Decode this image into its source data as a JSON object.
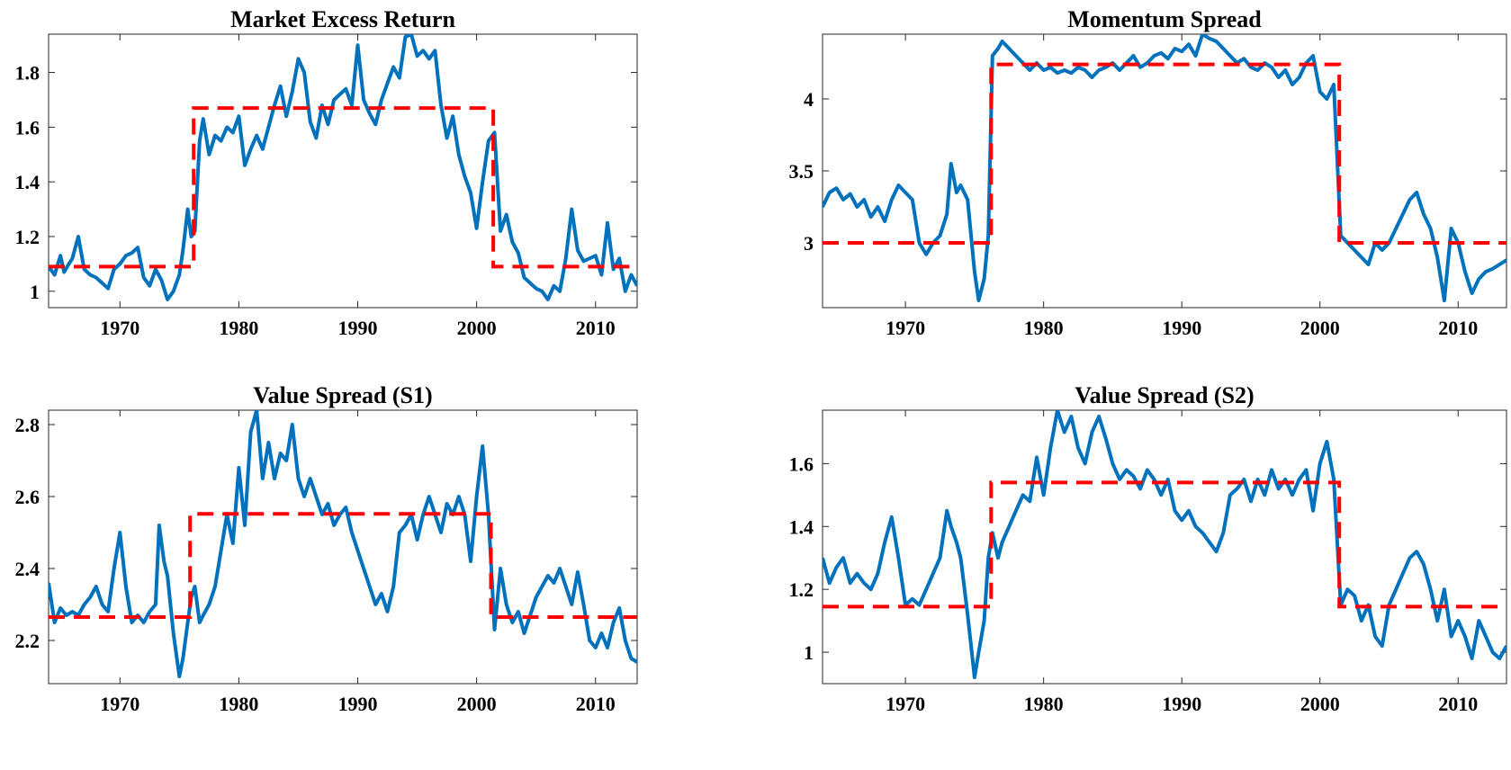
{
  "colors": {
    "series": "#0072BD",
    "regime": "#FF0000",
    "axes": "#262626",
    "background": "#FFFFFF"
  },
  "chart_data": [
    {
      "type": "line",
      "title": "Market Excess Return",
      "xlim": [
        1964,
        2013.5
      ],
      "ylim": [
        0.94,
        1.94
      ],
      "xticks": [
        1970,
        1980,
        1990,
        2000,
        2010
      ],
      "yticks": [
        1,
        1.2,
        1.4,
        1.6,
        1.8
      ],
      "ytick_labels": [
        "1",
        "1.2",
        "1.4",
        "1.6",
        "1.8"
      ],
      "grid": false,
      "series": [
        {
          "x": [
            1964.0,
            1964.5,
            1965.0,
            1965.3,
            1965.7,
            1966.0,
            1966.5,
            1967.0,
            1967.5,
            1968.0,
            1968.5,
            1969.0,
            1969.5,
            1970.0,
            1970.5,
            1971.0,
            1971.5,
            1972.0,
            1972.5,
            1973.0,
            1973.5,
            1974.0,
            1974.5,
            1975.0,
            1975.3,
            1975.7,
            1976.0,
            1976.3,
            1976.7,
            1977.0,
            1977.5,
            1978.0,
            1978.5,
            1979.0,
            1979.5,
            1980.0,
            1980.5,
            1981.0,
            1981.5,
            1982.0,
            1982.5,
            1983.0,
            1983.5,
            1984.0,
            1984.5,
            1985.0,
            1985.5,
            1986.0,
            1986.5,
            1987.0,
            1987.5,
            1988.0,
            1988.5,
            1989.0,
            1989.5,
            1990.0,
            1990.5,
            1991.0,
            1991.5,
            1992.0,
            1992.5,
            1993.0,
            1993.5,
            1994.0,
            1994.5,
            1995.0,
            1995.5,
            1996.0,
            1996.5,
            1997.0,
            1997.5,
            1998.0,
            1998.5,
            1999.0,
            1999.5,
            2000.0,
            2000.5,
            2001.0,
            2001.5,
            2002.0,
            2002.5,
            2003.0,
            2003.5,
            2004.0,
            2004.5,
            2005.0,
            2005.5,
            2006.0,
            2006.5,
            2007.0,
            2007.5,
            2008.0,
            2008.5,
            2009.0,
            2009.5,
            2010.0,
            2010.5,
            2011.0,
            2011.5,
            2012.0,
            2012.5,
            2013.0,
            2013.5
          ],
          "y": [
            1.09,
            1.06,
            1.13,
            1.07,
            1.1,
            1.12,
            1.2,
            1.08,
            1.06,
            1.05,
            1.03,
            1.01,
            1.08,
            1.1,
            1.13,
            1.14,
            1.16,
            1.05,
            1.02,
            1.08,
            1.04,
            0.97,
            1.0,
            1.06,
            1.15,
            1.3,
            1.2,
            1.22,
            1.55,
            1.63,
            1.5,
            1.57,
            1.55,
            1.6,
            1.58,
            1.64,
            1.46,
            1.52,
            1.57,
            1.52,
            1.6,
            1.68,
            1.75,
            1.64,
            1.73,
            1.85,
            1.8,
            1.62,
            1.56,
            1.68,
            1.61,
            1.7,
            1.72,
            1.74,
            1.68,
            1.9,
            1.7,
            1.65,
            1.61,
            1.7,
            1.76,
            1.82,
            1.78,
            1.93,
            1.94,
            1.86,
            1.88,
            1.85,
            1.88,
            1.68,
            1.56,
            1.64,
            1.5,
            1.42,
            1.36,
            1.23,
            1.4,
            1.55,
            1.58,
            1.22,
            1.28,
            1.18,
            1.14,
            1.05,
            1.03,
            1.01,
            1.0,
            0.97,
            1.02,
            1.0,
            1.12,
            1.3,
            1.15,
            1.11,
            1.12,
            1.13,
            1.06,
            1.25,
            1.08,
            1.12,
            1.0,
            1.06,
            1.02
          ]
        }
      ],
      "regimes": {
        "x": [
          1964,
          1976.2,
          1976.2,
          2001.4,
          2001.4,
          2013.5
        ],
        "y": [
          1.09,
          1.09,
          1.67,
          1.67,
          1.09,
          1.09
        ]
      }
    },
    {
      "type": "line",
      "title": "Momentum Spread",
      "xlim": [
        1964,
        2013.5
      ],
      "ylim": [
        2.55,
        4.45
      ],
      "xticks": [
        1970,
        1980,
        1990,
        2000,
        2010
      ],
      "yticks": [
        3,
        3.5,
        4
      ],
      "ytick_labels": [
        "3",
        "3.5",
        "4"
      ],
      "grid": false,
      "series": [
        {
          "x": [
            1964.0,
            1964.5,
            1965.0,
            1965.5,
            1966.0,
            1966.5,
            1967.0,
            1967.5,
            1968.0,
            1968.5,
            1969.0,
            1969.5,
            1970.0,
            1970.5,
            1971.0,
            1971.5,
            1972.0,
            1972.5,
            1973.0,
            1973.3,
            1973.7,
            1974.0,
            1974.5,
            1975.0,
            1975.3,
            1975.7,
            1976.0,
            1976.3,
            1976.7,
            1977.0,
            1977.5,
            1978.0,
            1978.5,
            1979.0,
            1979.5,
            1980.0,
            1980.5,
            1981.0,
            1981.5,
            1982.0,
            1982.5,
            1983.0,
            1983.5,
            1984.0,
            1984.5,
            1985.0,
            1985.5,
            1986.0,
            1986.5,
            1987.0,
            1987.5,
            1988.0,
            1988.5,
            1989.0,
            1989.5,
            1990.0,
            1990.5,
            1991.0,
            1991.5,
            1992.0,
            1992.5,
            1993.0,
            1993.5,
            1994.0,
            1994.5,
            1995.0,
            1995.5,
            1996.0,
            1996.5,
            1997.0,
            1997.5,
            1998.0,
            1998.5,
            1999.0,
            1999.5,
            2000.0,
            2000.5,
            2001.0,
            2001.5,
            2002.0,
            2002.5,
            2003.0,
            2003.5,
            2004.0,
            2004.5,
            2005.0,
            2005.5,
            2006.0,
            2006.5,
            2007.0,
            2007.5,
            2008.0,
            2008.5,
            2009.0,
            2009.5,
            2010.0,
            2010.5,
            2011.0,
            2011.5,
            2012.0,
            2012.5,
            2013.0,
            2013.5
          ],
          "y": [
            3.25,
            3.35,
            3.38,
            3.3,
            3.34,
            3.25,
            3.3,
            3.18,
            3.25,
            3.15,
            3.3,
            3.4,
            3.35,
            3.3,
            3.0,
            2.92,
            3.0,
            3.05,
            3.2,
            3.55,
            3.35,
            3.4,
            3.3,
            2.8,
            2.6,
            2.75,
            3.05,
            4.3,
            4.35,
            4.4,
            4.35,
            4.3,
            4.25,
            4.2,
            4.25,
            4.2,
            4.22,
            4.18,
            4.2,
            4.18,
            4.22,
            4.2,
            4.15,
            4.2,
            4.22,
            4.25,
            4.2,
            4.25,
            4.3,
            4.22,
            4.25,
            4.3,
            4.32,
            4.28,
            4.35,
            4.33,
            4.38,
            4.3,
            4.45,
            4.42,
            4.4,
            4.35,
            4.3,
            4.25,
            4.28,
            4.22,
            4.2,
            4.25,
            4.22,
            4.15,
            4.2,
            4.1,
            4.15,
            4.25,
            4.3,
            4.05,
            4.0,
            4.1,
            3.05,
            3.0,
            2.95,
            2.9,
            2.85,
            3.0,
            2.95,
            3.0,
            3.1,
            3.2,
            3.3,
            3.35,
            3.2,
            3.1,
            2.9,
            2.6,
            3.1,
            3.0,
            2.8,
            2.65,
            2.75,
            2.8,
            2.82,
            2.85,
            2.88
          ]
        }
      ],
      "regimes": {
        "x": [
          1964,
          1976.2,
          1976.2,
          2001.4,
          2001.4,
          2013.5
        ],
        "y": [
          3.0,
          3.0,
          4.24,
          4.24,
          3.0,
          3.0
        ]
      }
    },
    {
      "type": "line",
      "title": "Value Spread (S1)",
      "xlim": [
        1964,
        2013.5
      ],
      "ylim": [
        2.08,
        2.84
      ],
      "xticks": [
        1970,
        1980,
        1990,
        2000,
        2010
      ],
      "yticks": [
        2.2,
        2.4,
        2.6,
        2.8
      ],
      "ytick_labels": [
        "2.2",
        "2.4",
        "2.6",
        "2.8"
      ],
      "grid": false,
      "series": [
        {
          "x": [
            1964.0,
            1964.5,
            1965.0,
            1965.5,
            1966.0,
            1966.5,
            1967.0,
            1967.5,
            1968.0,
            1968.5,
            1969.0,
            1969.5,
            1970.0,
            1970.5,
            1971.0,
            1971.5,
            1972.0,
            1972.5,
            1973.0,
            1973.3,
            1973.7,
            1974.0,
            1974.5,
            1975.0,
            1975.3,
            1975.7,
            1976.0,
            1976.3,
            1976.7,
            1977.0,
            1977.5,
            1978.0,
            1978.5,
            1979.0,
            1979.5,
            1980.0,
            1980.5,
            1981.0,
            1981.5,
            1982.0,
            1982.5,
            1983.0,
            1983.5,
            1984.0,
            1984.5,
            1985.0,
            1985.5,
            1986.0,
            1986.5,
            1987.0,
            1987.5,
            1988.0,
            1988.5,
            1989.0,
            1989.5,
            1990.0,
            1990.5,
            1991.0,
            1991.5,
            1992.0,
            1992.5,
            1993.0,
            1993.5,
            1994.0,
            1994.5,
            1995.0,
            1995.5,
            1996.0,
            1996.5,
            1997.0,
            1997.5,
            1998.0,
            1998.5,
            1999.0,
            1999.5,
            2000.0,
            2000.5,
            2001.0,
            2001.5,
            2002.0,
            2002.5,
            2003.0,
            2003.5,
            2004.0,
            2004.5,
            2005.0,
            2005.5,
            2006.0,
            2006.5,
            2007.0,
            2007.5,
            2008.0,
            2008.5,
            2009.0,
            2009.5,
            2010.0,
            2010.5,
            2011.0,
            2011.5,
            2012.0,
            2012.5,
            2013.0,
            2013.5
          ],
          "y": [
            2.36,
            2.25,
            2.29,
            2.27,
            2.28,
            2.27,
            2.3,
            2.32,
            2.35,
            2.3,
            2.28,
            2.4,
            2.5,
            2.35,
            2.25,
            2.27,
            2.25,
            2.28,
            2.3,
            2.52,
            2.42,
            2.38,
            2.22,
            2.1,
            2.15,
            2.25,
            2.32,
            2.35,
            2.25,
            2.27,
            2.3,
            2.35,
            2.45,
            2.55,
            2.47,
            2.68,
            2.52,
            2.78,
            2.84,
            2.65,
            2.75,
            2.65,
            2.72,
            2.7,
            2.8,
            2.65,
            2.6,
            2.65,
            2.6,
            2.55,
            2.58,
            2.52,
            2.55,
            2.57,
            2.5,
            2.45,
            2.4,
            2.35,
            2.3,
            2.33,
            2.28,
            2.35,
            2.5,
            2.52,
            2.55,
            2.48,
            2.55,
            2.6,
            2.55,
            2.5,
            2.58,
            2.55,
            2.6,
            2.55,
            2.42,
            2.6,
            2.74,
            2.55,
            2.23,
            2.4,
            2.3,
            2.25,
            2.28,
            2.22,
            2.27,
            2.32,
            2.35,
            2.38,
            2.36,
            2.4,
            2.35,
            2.3,
            2.39,
            2.3,
            2.2,
            2.18,
            2.22,
            2.18,
            2.25,
            2.29,
            2.2,
            2.15,
            2.14
          ]
        }
      ],
      "regimes": {
        "x": [
          1964,
          1975.9,
          1975.9,
          2001.2,
          2001.2,
          2013.5
        ],
        "y": [
          2.265,
          2.265,
          2.552,
          2.552,
          2.265,
          2.265
        ]
      }
    },
    {
      "type": "line",
      "title": "Value Spread (S2)",
      "xlim": [
        1964,
        2013.5
      ],
      "ylim": [
        0.9,
        1.77
      ],
      "xticks": [
        1970,
        1980,
        1990,
        2000,
        2010
      ],
      "yticks": [
        1,
        1.2,
        1.4,
        1.6
      ],
      "ytick_labels": [
        "1",
        "1.2",
        "1.4",
        "1.6"
      ],
      "grid": false,
      "series": [
        {
          "x": [
            1964.0,
            1964.5,
            1965.0,
            1965.5,
            1966.0,
            1966.5,
            1967.0,
            1967.5,
            1968.0,
            1968.5,
            1969.0,
            1969.5,
            1970.0,
            1970.5,
            1971.0,
            1971.5,
            1972.0,
            1972.5,
            1973.0,
            1973.3,
            1973.7,
            1974.0,
            1974.5,
            1975.0,
            1975.3,
            1975.7,
            1976.0,
            1976.3,
            1976.7,
            1977.0,
            1977.5,
            1978.0,
            1978.5,
            1979.0,
            1979.5,
            1980.0,
            1980.5,
            1981.0,
            1981.5,
            1982.0,
            1982.5,
            1983.0,
            1983.5,
            1984.0,
            1984.5,
            1985.0,
            1985.5,
            1986.0,
            1986.5,
            1987.0,
            1987.5,
            1988.0,
            1988.5,
            1989.0,
            1989.5,
            1990.0,
            1990.5,
            1991.0,
            1991.5,
            1992.0,
            1992.5,
            1993.0,
            1993.5,
            1994.0,
            1994.5,
            1995.0,
            1995.5,
            1996.0,
            1996.5,
            1997.0,
            1997.5,
            1998.0,
            1998.5,
            1999.0,
            1999.5,
            2000.0,
            2000.5,
            2001.0,
            2001.5,
            2002.0,
            2002.5,
            2003.0,
            2003.5,
            2004.0,
            2004.5,
            2005.0,
            2005.5,
            2006.0,
            2006.5,
            2007.0,
            2007.5,
            2008.0,
            2008.5,
            2009.0,
            2009.5,
            2010.0,
            2010.5,
            2011.0,
            2011.5,
            2012.0,
            2012.5,
            2013.0,
            2013.5
          ],
          "y": [
            1.3,
            1.22,
            1.27,
            1.3,
            1.22,
            1.25,
            1.22,
            1.2,
            1.25,
            1.35,
            1.43,
            1.3,
            1.15,
            1.17,
            1.15,
            1.2,
            1.25,
            1.3,
            1.45,
            1.4,
            1.35,
            1.3,
            1.12,
            0.92,
            1.0,
            1.1,
            1.3,
            1.38,
            1.3,
            1.35,
            1.4,
            1.45,
            1.5,
            1.48,
            1.62,
            1.5,
            1.65,
            1.77,
            1.7,
            1.75,
            1.65,
            1.6,
            1.7,
            1.75,
            1.68,
            1.6,
            1.55,
            1.58,
            1.56,
            1.52,
            1.58,
            1.55,
            1.5,
            1.55,
            1.45,
            1.42,
            1.45,
            1.4,
            1.38,
            1.35,
            1.32,
            1.38,
            1.5,
            1.52,
            1.55,
            1.48,
            1.55,
            1.5,
            1.58,
            1.52,
            1.55,
            1.5,
            1.55,
            1.58,
            1.45,
            1.6,
            1.67,
            1.55,
            1.15,
            1.2,
            1.18,
            1.1,
            1.15,
            1.05,
            1.02,
            1.15,
            1.2,
            1.25,
            1.3,
            1.32,
            1.28,
            1.2,
            1.1,
            1.2,
            1.05,
            1.1,
            1.05,
            0.98,
            1.1,
            1.05,
            1.0,
            0.98,
            1.02
          ]
        }
      ],
      "regimes": {
        "x": [
          1964,
          1976.2,
          1976.2,
          2001.4,
          2001.4,
          2013.5
        ],
        "y": [
          1.145,
          1.145,
          1.54,
          1.54,
          1.145,
          1.145
        ]
      }
    }
  ]
}
